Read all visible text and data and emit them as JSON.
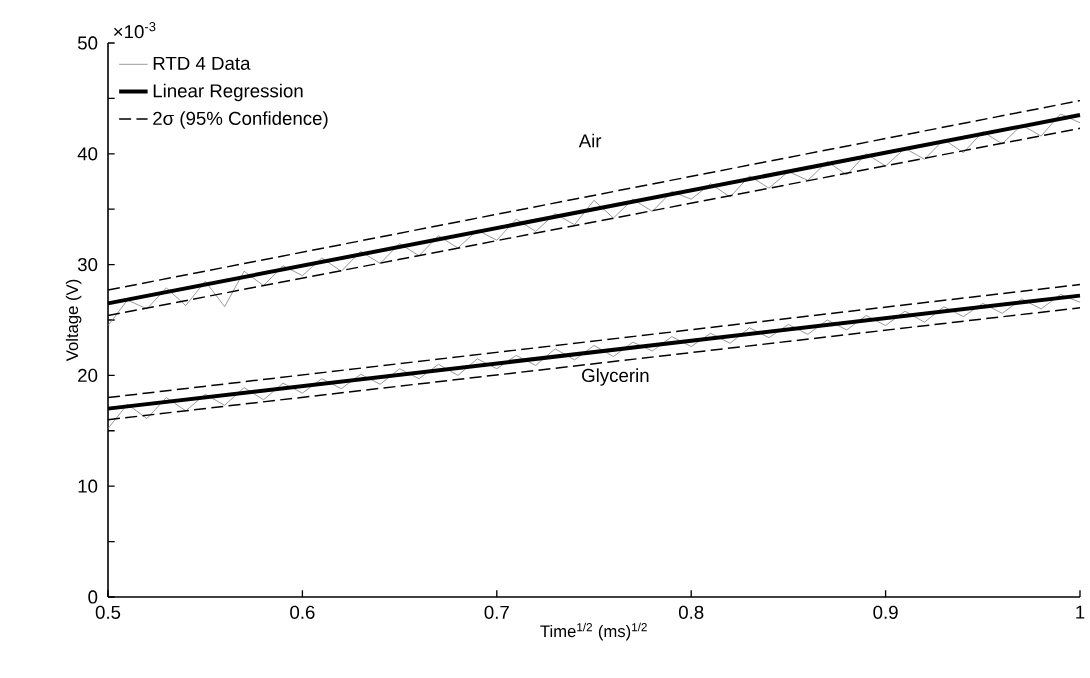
{
  "chart_data": {
    "type": "line",
    "xlabel": "Time$^{1/2}$ (ms)$^{1/2}$",
    "ylabel": "Voltage (V)",
    "annotations": [
      "×10$^{-3}$",
      "Air",
      "Glycerin"
    ],
    "xlim": [
      0.5,
      1
    ],
    "xticks": [
      0.5,
      0.6,
      0.7,
      0.8,
      0.9,
      1
    ],
    "ylim": [
      0,
      50
    ],
    "yticks": [
      0,
      {
        "value": 5,
        "label": null
      },
      10,
      {
        "value": 15,
        "label": null
      },
      20,
      {
        "value": 25,
        "label": null
      },
      30,
      {
        "value": 35,
        "label": null
      },
      40,
      {
        "value": 45,
        "label": null
      },
      50
    ],
    "grid": false,
    "legend": "top left",
    "series": [
      {
        "name": "RTD 4 Data",
        "color": "#808080",
        "line_style": "solid",
        "x": [
          0.5,
          0.51,
          0.52,
          0.53,
          0.54,
          0.55,
          0.56,
          0.57,
          0.58,
          0.59,
          0.6,
          0.61,
          0.62,
          0.63,
          0.64,
          0.65,
          0.66,
          0.67,
          0.68,
          0.69,
          0.7,
          0.71,
          0.72,
          0.73,
          0.74,
          0.75,
          0.76,
          0.77,
          0.78,
          0.79,
          0.8,
          0.81,
          0.82,
          0.83,
          0.84,
          0.85,
          0.86,
          0.87,
          0.88,
          0.89,
          0.9,
          0.91,
          0.92,
          0.93,
          0.94,
          0.95,
          0.96,
          0.97,
          0.98,
          0.99,
          1
        ],
        "values": [
          24.5,
          26.8,
          26.0,
          27.9,
          26.3,
          28.5,
          26.2,
          29.4,
          28.1,
          29.9,
          29.0,
          30.6,
          29.4,
          31.2,
          30.1,
          31.9,
          30.8,
          32.6,
          31.5,
          33.1,
          32.2,
          34.1,
          33.0,
          34.6,
          33.6,
          35.8,
          34.2,
          35.9,
          34.8,
          36.6,
          35.9,
          37.3,
          36.1,
          38.0,
          36.9,
          38.4,
          37.6,
          39.3,
          38.1,
          40.0,
          38.9,
          40.5,
          39.5,
          41.3,
          40.1,
          42.0,
          40.9,
          42.6,
          41.6,
          43.6,
          42.8
        ]
      },
      {
        "color": "#808080",
        "line_style": "solid",
        "x": [
          0.5,
          0.51,
          0.52,
          0.53,
          0.54,
          0.55,
          0.56,
          0.57,
          0.58,
          0.59,
          0.6,
          0.61,
          0.62,
          0.63,
          0.64,
          0.65,
          0.66,
          0.67,
          0.68,
          0.69,
          0.7,
          0.71,
          0.72,
          0.73,
          0.74,
          0.75,
          0.76,
          0.77,
          0.78,
          0.79,
          0.8,
          0.81,
          0.82,
          0.83,
          0.84,
          0.85,
          0.86,
          0.87,
          0.88,
          0.89,
          0.9,
          0.91,
          0.92,
          0.93,
          0.94,
          0.95,
          0.96,
          0.97,
          0.98,
          0.99,
          1
        ],
        "values": [
          15.2,
          17.4,
          16.1,
          18.0,
          16.8,
          18.3,
          17.3,
          18.9,
          17.8,
          19.3,
          18.4,
          19.7,
          18.8,
          20.1,
          19.2,
          20.6,
          19.7,
          21.0,
          20.0,
          21.5,
          20.6,
          21.8,
          20.9,
          22.4,
          21.4,
          22.7,
          21.7,
          23.0,
          22.2,
          23.5,
          22.6,
          23.8,
          22.9,
          24.3,
          23.4,
          24.6,
          23.7,
          25.0,
          24.1,
          25.4,
          24.5,
          25.8,
          24.8,
          26.2,
          25.3,
          26.5,
          25.6,
          26.9,
          26.0,
          27.3,
          26.6
        ]
      },
      {
        "name": "Linear Regression",
        "color": "#000000",
        "line_style": "solid",
        "x": [
          0.5,
          1
        ],
        "values": [
          26.5,
          43.5
        ]
      },
      {
        "color": "#000000",
        "line_style": "solid",
        "x": [
          0.5,
          1
        ],
        "values": [
          17.0,
          27.2
        ]
      },
      {
        "name": "2σ (95% Confidence)",
        "color": "#000000",
        "line_style": "dashed",
        "x": [
          0.5,
          1
        ],
        "values": [
          27.7,
          44.8
        ]
      },
      {
        "color": "#000000",
        "line_style": "dashed",
        "x": [
          0.5,
          1
        ],
        "values": [
          25.4,
          42.3
        ]
      },
      {
        "color": "#000000",
        "line_style": "dashed",
        "x": [
          0.5,
          1
        ],
        "values": [
          18.0,
          28.2
        ]
      },
      {
        "color": "#000000",
        "line_style": "dashed",
        "x": [
          0.5,
          1
        ],
        "values": [
          16.0,
          26.1
        ]
      }
    ]
  }
}
